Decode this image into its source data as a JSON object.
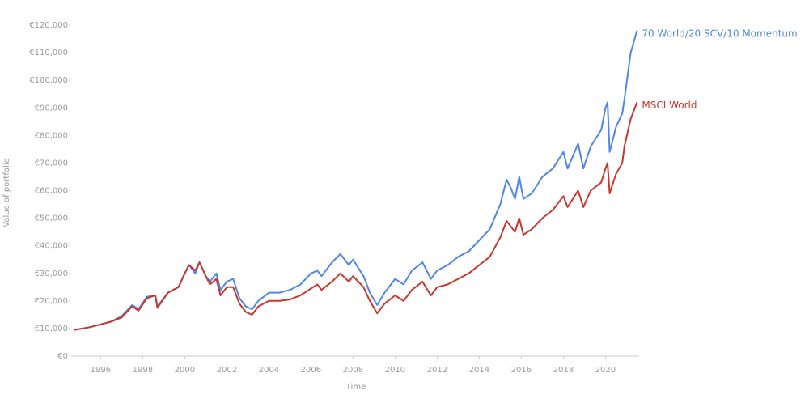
{
  "chart_data": {
    "type": "line",
    "x_label": "Time",
    "y_label": "Value of portfolio",
    "x": [
      1994.75,
      1995.5,
      1996.0,
      1996.5,
      1997.0,
      1997.5,
      1997.8,
      1998.2,
      1998.6,
      1998.7,
      1999.2,
      1999.7,
      2000.0,
      2000.2,
      2000.5,
      2000.7,
      2001.0,
      2001.2,
      2001.5,
      2001.7,
      2002.0,
      2002.3,
      2002.6,
      2002.9,
      2003.2,
      2003.5,
      2004.0,
      2004.5,
      2005.0,
      2005.5,
      2006.0,
      2006.3,
      2006.5,
      2007.0,
      2007.4,
      2007.8,
      2008.0,
      2008.5,
      2008.8,
      2009.15,
      2009.5,
      2010.0,
      2010.4,
      2010.8,
      2011.3,
      2011.7,
      2012.0,
      2012.5,
      2013.0,
      2013.5,
      2014.0,
      2014.5,
      2015.0,
      2015.3,
      2015.5,
      2015.7,
      2015.9,
      2016.1,
      2016.5,
      2017.0,
      2017.5,
      2018.0,
      2018.2,
      2018.7,
      2018.95,
      2019.3,
      2019.8,
      2020.0,
      2020.1,
      2020.2,
      2020.5,
      2020.8,
      2020.9,
      2021.2,
      2021.5
    ],
    "series": [
      {
        "name": "70 World/20 SCV/10 Momentum",
        "color": "#4f86e8",
        "values": [
          9500,
          10500,
          11500,
          12500,
          14500,
          18500,
          17000,
          21500,
          22000,
          18000,
          23000,
          25000,
          30000,
          33000,
          30000,
          34000,
          29000,
          27000,
          30000,
          24000,
          27000,
          28000,
          21000,
          18000,
          17000,
          20000,
          23000,
          23000,
          24000,
          26000,
          30000,
          31000,
          29000,
          34000,
          37000,
          33000,
          35000,
          29000,
          23000,
          18500,
          23000,
          28000,
          26000,
          31000,
          34000,
          28000,
          31000,
          33000,
          36000,
          38000,
          42000,
          46000,
          55000,
          64000,
          61000,
          57000,
          65000,
          57000,
          59000,
          65000,
          68000,
          74000,
          68000,
          77000,
          68000,
          76000,
          82000,
          90000,
          92000,
          74000,
          83000,
          88000,
          93000,
          110000,
          118000
        ]
      },
      {
        "name": "MSCI World",
        "color": "#c9372c",
        "values": [
          9500,
          10500,
          11500,
          12500,
          14000,
          18000,
          16500,
          21000,
          22000,
          17500,
          23000,
          25000,
          30000,
          33000,
          31000,
          34000,
          29000,
          26000,
          28000,
          22000,
          25000,
          25000,
          19000,
          16000,
          15000,
          18000,
          20000,
          20000,
          20500,
          22000,
          24500,
          26000,
          24000,
          27000,
          30000,
          27000,
          29000,
          25000,
          20000,
          15500,
          19000,
          22000,
          20000,
          24000,
          27000,
          22000,
          25000,
          26000,
          28000,
          30000,
          33000,
          36000,
          43000,
          49000,
          47000,
          45000,
          50000,
          44000,
          46000,
          50000,
          53000,
          58000,
          54000,
          60000,
          54000,
          60000,
          63000,
          68000,
          70000,
          59000,
          66000,
          70000,
          76000,
          86000,
          92000
        ]
      }
    ],
    "xlim": [
      1994.6,
      2021.6
    ],
    "xticks": [
      1996,
      1998,
      2000,
      2002,
      2004,
      2006,
      2008,
      2010,
      2012,
      2014,
      2016,
      2018,
      2020
    ],
    "ylim": [
      0,
      120000
    ],
    "yticks": [
      {
        "value": 0,
        "label": "€0"
      },
      {
        "value": 10000,
        "label": "€10,000"
      },
      {
        "value": 20000,
        "label": "€20,000"
      },
      {
        "value": 30000,
        "label": "€30,000"
      },
      {
        "value": 40000,
        "label": "€40,000"
      },
      {
        "value": 50000,
        "label": "€50,000"
      },
      {
        "value": 60000,
        "label": "€60,000"
      },
      {
        "value": 70000,
        "label": "€70,000"
      },
      {
        "value": 80000,
        "label": "€80,000"
      },
      {
        "value": 90000,
        "label": "€90,000"
      },
      {
        "value": 100000,
        "label": "€100,000"
      },
      {
        "value": 110000,
        "label": "€110,000"
      },
      {
        "value": 120000,
        "label": "€120,000"
      }
    ],
    "grid": false
  }
}
